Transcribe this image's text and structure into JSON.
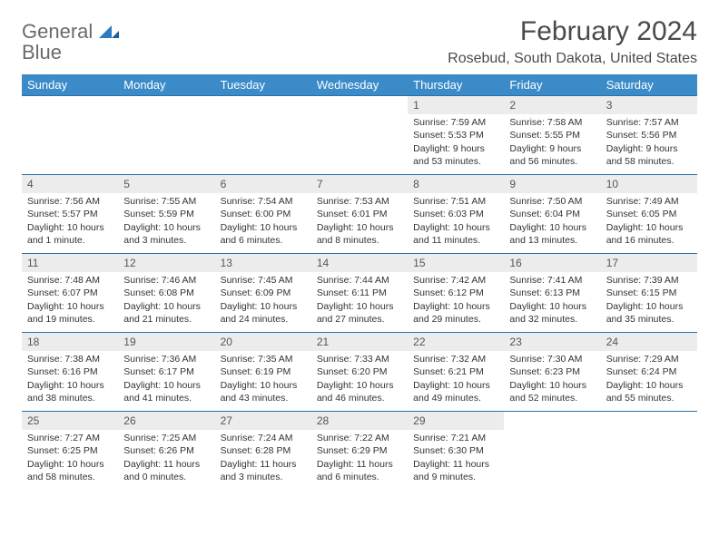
{
  "brand": {
    "general": "General",
    "blue": "Blue"
  },
  "title": "February 2024",
  "location": "Rosebud, South Dakota, United States",
  "colors": {
    "header_bg": "#3b8bc9",
    "header_text": "#ffffff",
    "row_border": "#2b6fa8",
    "daynum_bg": "#ececec",
    "body_text": "#333333",
    "brand_grey": "#6b6b6b",
    "brand_blue": "#2b7bbf"
  },
  "day_names": [
    "Sunday",
    "Monday",
    "Tuesday",
    "Wednesday",
    "Thursday",
    "Friday",
    "Saturday"
  ],
  "weeks": [
    [
      null,
      null,
      null,
      null,
      {
        "n": "1",
        "sr": "7:59 AM",
        "ss": "5:53 PM",
        "dl": "Daylight: 9 hours and 53 minutes."
      },
      {
        "n": "2",
        "sr": "7:58 AM",
        "ss": "5:55 PM",
        "dl": "Daylight: 9 hours and 56 minutes."
      },
      {
        "n": "3",
        "sr": "7:57 AM",
        "ss": "5:56 PM",
        "dl": "Daylight: 9 hours and 58 minutes."
      }
    ],
    [
      {
        "n": "4",
        "sr": "7:56 AM",
        "ss": "5:57 PM",
        "dl": "Daylight: 10 hours and 1 minute."
      },
      {
        "n": "5",
        "sr": "7:55 AM",
        "ss": "5:59 PM",
        "dl": "Daylight: 10 hours and 3 minutes."
      },
      {
        "n": "6",
        "sr": "7:54 AM",
        "ss": "6:00 PM",
        "dl": "Daylight: 10 hours and 6 minutes."
      },
      {
        "n": "7",
        "sr": "7:53 AM",
        "ss": "6:01 PM",
        "dl": "Daylight: 10 hours and 8 minutes."
      },
      {
        "n": "8",
        "sr": "7:51 AM",
        "ss": "6:03 PM",
        "dl": "Daylight: 10 hours and 11 minutes."
      },
      {
        "n": "9",
        "sr": "7:50 AM",
        "ss": "6:04 PM",
        "dl": "Daylight: 10 hours and 13 minutes."
      },
      {
        "n": "10",
        "sr": "7:49 AM",
        "ss": "6:05 PM",
        "dl": "Daylight: 10 hours and 16 minutes."
      }
    ],
    [
      {
        "n": "11",
        "sr": "7:48 AM",
        "ss": "6:07 PM",
        "dl": "Daylight: 10 hours and 19 minutes."
      },
      {
        "n": "12",
        "sr": "7:46 AM",
        "ss": "6:08 PM",
        "dl": "Daylight: 10 hours and 21 minutes."
      },
      {
        "n": "13",
        "sr": "7:45 AM",
        "ss": "6:09 PM",
        "dl": "Daylight: 10 hours and 24 minutes."
      },
      {
        "n": "14",
        "sr": "7:44 AM",
        "ss": "6:11 PM",
        "dl": "Daylight: 10 hours and 27 minutes."
      },
      {
        "n": "15",
        "sr": "7:42 AM",
        "ss": "6:12 PM",
        "dl": "Daylight: 10 hours and 29 minutes."
      },
      {
        "n": "16",
        "sr": "7:41 AM",
        "ss": "6:13 PM",
        "dl": "Daylight: 10 hours and 32 minutes."
      },
      {
        "n": "17",
        "sr": "7:39 AM",
        "ss": "6:15 PM",
        "dl": "Daylight: 10 hours and 35 minutes."
      }
    ],
    [
      {
        "n": "18",
        "sr": "7:38 AM",
        "ss": "6:16 PM",
        "dl": "Daylight: 10 hours and 38 minutes."
      },
      {
        "n": "19",
        "sr": "7:36 AM",
        "ss": "6:17 PM",
        "dl": "Daylight: 10 hours and 41 minutes."
      },
      {
        "n": "20",
        "sr": "7:35 AM",
        "ss": "6:19 PM",
        "dl": "Daylight: 10 hours and 43 minutes."
      },
      {
        "n": "21",
        "sr": "7:33 AM",
        "ss": "6:20 PM",
        "dl": "Daylight: 10 hours and 46 minutes."
      },
      {
        "n": "22",
        "sr": "7:32 AM",
        "ss": "6:21 PM",
        "dl": "Daylight: 10 hours and 49 minutes."
      },
      {
        "n": "23",
        "sr": "7:30 AM",
        "ss": "6:23 PM",
        "dl": "Daylight: 10 hours and 52 minutes."
      },
      {
        "n": "24",
        "sr": "7:29 AM",
        "ss": "6:24 PM",
        "dl": "Daylight: 10 hours and 55 minutes."
      }
    ],
    [
      {
        "n": "25",
        "sr": "7:27 AM",
        "ss": "6:25 PM",
        "dl": "Daylight: 10 hours and 58 minutes."
      },
      {
        "n": "26",
        "sr": "7:25 AM",
        "ss": "6:26 PM",
        "dl": "Daylight: 11 hours and 0 minutes."
      },
      {
        "n": "27",
        "sr": "7:24 AM",
        "ss": "6:28 PM",
        "dl": "Daylight: 11 hours and 3 minutes."
      },
      {
        "n": "28",
        "sr": "7:22 AM",
        "ss": "6:29 PM",
        "dl": "Daylight: 11 hours and 6 minutes."
      },
      {
        "n": "29",
        "sr": "7:21 AM",
        "ss": "6:30 PM",
        "dl": "Daylight: 11 hours and 9 minutes."
      },
      null,
      null
    ]
  ]
}
